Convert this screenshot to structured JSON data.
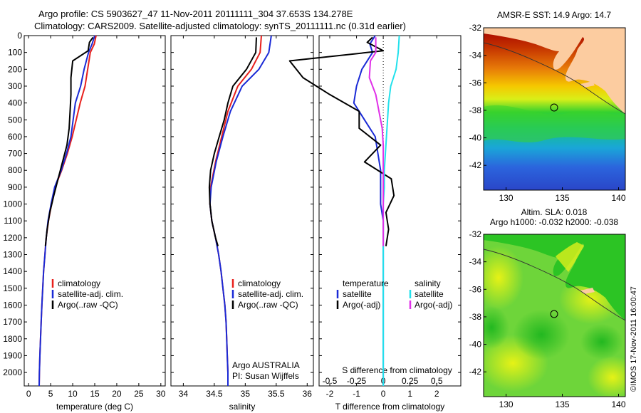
{
  "header": {
    "line1": "Argo profile: CS 5903627_47 11-Nov-2011 20111111_304 37.653S 134.278E",
    "line2": "Climatology: CARS2009. Satellite-adjusted climatology: synTS_20111111.nc (0.31d earlier)"
  },
  "side_label": "©IMOS 17-Nov-2011 16:00:47",
  "colors": {
    "climatology": "#e8201c",
    "satellite": "#1a2ad6",
    "argo": "#000000",
    "sal_satellite": "#22e1ec",
    "sal_argo": "#e030e8",
    "land": "#fccca0"
  },
  "chart_data": [
    {
      "type": "line",
      "id": "temperature",
      "xlabel": "temperature (deg C)",
      "xlim": [
        -1,
        31
      ],
      "xticks": [
        0,
        5,
        10,
        15,
        20,
        25,
        30
      ],
      "ylim": [
        0,
        2080
      ],
      "yticks": [
        0,
        100,
        200,
        300,
        400,
        500,
        600,
        700,
        800,
        900,
        1000,
        1100,
        1200,
        1300,
        1400,
        1500,
        1600,
        1700,
        1800,
        1900,
        2000
      ],
      "legend": [
        "climatology",
        "satellite-adj. clim.",
        "Argo(..raw -QC)"
      ],
      "series": [
        {
          "name": "climatology",
          "color": "#e8201c",
          "points": [
            [
              15.3,
              0
            ],
            [
              14.9,
              50
            ],
            [
              14.0,
              100
            ],
            [
              13.4,
              200
            ],
            [
              12.8,
              300
            ],
            [
              11.7,
              400
            ],
            [
              10.8,
              500
            ],
            [
              9.9,
              600
            ],
            [
              8.8,
              700
            ],
            [
              7.5,
              800
            ],
            [
              6.0,
              900
            ],
            [
              5.2,
              1000
            ],
            [
              4.5,
              1100
            ],
            [
              4.0,
              1200
            ],
            [
              3.7,
              1300
            ],
            [
              3.4,
              1400
            ],
            [
              3.2,
              1500
            ],
            [
              3.0,
              1600
            ],
            [
              2.85,
              1700
            ],
            [
              2.7,
              1800
            ],
            [
              2.55,
              1900
            ],
            [
              2.45,
              2000
            ],
            [
              2.4,
              2080
            ]
          ]
        },
        {
          "name": "satellite-adj. clim.",
          "color": "#1a2ad6",
          "points": [
            [
              15.0,
              0
            ],
            [
              14.4,
              50
            ],
            [
              13.6,
              100
            ],
            [
              12.6,
              200
            ],
            [
              11.8,
              300
            ],
            [
              10.6,
              400
            ],
            [
              10.1,
              500
            ],
            [
              9.6,
              600
            ],
            [
              8.6,
              700
            ],
            [
              7.4,
              800
            ],
            [
              5.9,
              900
            ],
            [
              5.1,
              1000
            ],
            [
              4.4,
              1100
            ],
            [
              4.0,
              1200
            ],
            [
              3.7,
              1300
            ],
            [
              3.4,
              1400
            ],
            [
              3.2,
              1500
            ],
            [
              3.0,
              1600
            ],
            [
              2.85,
              1700
            ],
            [
              2.7,
              1800
            ],
            [
              2.55,
              1900
            ],
            [
              2.45,
              2000
            ],
            [
              2.4,
              2080
            ]
          ]
        },
        {
          "name": "Argo(..raw -QC)",
          "color": "#000000",
          "points": [
            [
              14.6,
              10
            ],
            [
              13.8,
              40
            ],
            [
              13.5,
              90
            ],
            [
              10.0,
              150
            ],
            [
              9.6,
              250
            ],
            [
              9.6,
              350
            ],
            [
              9.4,
              450
            ],
            [
              9.2,
              550
            ],
            [
              8.7,
              650
            ],
            [
              7.7,
              750
            ],
            [
              6.7,
              850
            ],
            [
              5.7,
              950
            ],
            [
              4.8,
              1050
            ],
            [
              4.2,
              1150
            ],
            [
              3.8,
              1250
            ]
          ]
        }
      ]
    },
    {
      "type": "line",
      "id": "salinity",
      "xlabel": "salinity",
      "xlim": [
        33.8,
        36.1
      ],
      "xticks": [
        34,
        34.5,
        35,
        35.5,
        36
      ],
      "ylim": [
        0,
        2080
      ],
      "legend": [
        "climatology",
        "satellite-adj. clim.",
        "Argo(..raw -QC)"
      ],
      "annotation": [
        "Argo AUSTRALIA",
        "PI: Susan Wijffels"
      ],
      "series": [
        {
          "name": "climatology",
          "color": "#e8201c",
          "points": [
            [
              35.26,
              0
            ],
            [
              35.24,
              100
            ],
            [
              35.1,
              200
            ],
            [
              34.88,
              300
            ],
            [
              34.72,
              450
            ],
            [
              34.62,
              600
            ],
            [
              34.52,
              750
            ],
            [
              34.44,
              900
            ],
            [
              34.43,
              1000
            ],
            [
              34.46,
              1100
            ],
            [
              34.52,
              1200
            ],
            [
              34.57,
              1300
            ],
            [
              34.61,
              1400
            ],
            [
              34.64,
              1500
            ],
            [
              34.67,
              1600
            ],
            [
              34.69,
              1700
            ],
            [
              34.7,
              1800
            ],
            [
              34.71,
              1900
            ],
            [
              34.72,
              2000
            ],
            [
              34.72,
              2080
            ]
          ]
        },
        {
          "name": "satellite-adj. clim.",
          "color": "#1a2ad6",
          "points": [
            [
              35.42,
              0
            ],
            [
              35.38,
              100
            ],
            [
              35.22,
              200
            ],
            [
              34.95,
              300
            ],
            [
              34.76,
              450
            ],
            [
              34.64,
              600
            ],
            [
              34.53,
              750
            ],
            [
              34.45,
              900
            ],
            [
              34.43,
              1000
            ],
            [
              34.46,
              1100
            ],
            [
              34.52,
              1200
            ],
            [
              34.57,
              1300
            ],
            [
              34.61,
              1400
            ],
            [
              34.64,
              1500
            ],
            [
              34.67,
              1600
            ],
            [
              34.69,
              1700
            ],
            [
              34.7,
              1800
            ],
            [
              34.71,
              1900
            ],
            [
              34.72,
              2000
            ],
            [
              34.72,
              2080
            ]
          ]
        },
        {
          "name": "Argo(..raw -QC)",
          "color": "#000000",
          "points": [
            [
              35.18,
              10
            ],
            [
              35.17,
              100
            ],
            [
              35.02,
              200
            ],
            [
              34.8,
              300
            ],
            [
              34.72,
              400
            ],
            [
              34.66,
              500
            ],
            [
              34.58,
              600
            ],
            [
              34.5,
              700
            ],
            [
              34.44,
              800
            ],
            [
              34.42,
              900
            ],
            [
              34.43,
              1000
            ],
            [
              34.46,
              1100
            ],
            [
              34.52,
              1200
            ],
            [
              34.56,
              1250
            ]
          ]
        }
      ]
    },
    {
      "type": "line",
      "id": "difference",
      "xlabel": "T difference from climatology",
      "xlabel_top": "S difference from climatology",
      "xlim": [
        -2.4,
        2.9
      ],
      "xticks": [
        -2,
        -1,
        0,
        1,
        2
      ],
      "xticks_top": [
        -0.5,
        -0.25,
        0,
        0.25,
        0.5
      ],
      "ylim": [
        0,
        2080
      ],
      "legend_t": [
        "temperature",
        "satellite",
        "Argo(-adj)"
      ],
      "legend_s": [
        "salinity",
        "satellite",
        "Argo(-adj)"
      ],
      "series": [
        {
          "name": "temperature satellite",
          "color": "#1a2ad6",
          "points": [
            [
              -0.3,
              0
            ],
            [
              -0.5,
              50
            ],
            [
              -0.4,
              100
            ],
            [
              -0.8,
              200
            ],
            [
              -1.0,
              300
            ],
            [
              -1.1,
              400
            ],
            [
              -0.7,
              500
            ],
            [
              -0.3,
              600
            ],
            [
              -0.2,
              700
            ],
            [
              -0.1,
              800
            ],
            [
              -0.1,
              900
            ],
            [
              -0.1,
              1000
            ],
            [
              0,
              1100
            ],
            [
              0,
              1200
            ],
            [
              0,
              1300
            ],
            [
              0,
              1400
            ],
            [
              0,
              1500
            ],
            [
              0,
              1600
            ],
            [
              0,
              1700
            ],
            [
              0,
              1800
            ],
            [
              0,
              1900
            ],
            [
              0,
              2000
            ],
            [
              0,
              2080
            ]
          ]
        },
        {
          "name": "temperature Argo(-adj)",
          "color": "#000000",
          "points": [
            [
              -0.4,
              10
            ],
            [
              -0.6,
              40
            ],
            [
              0.0,
              90
            ],
            [
              -3.5,
              150
            ],
            [
              -3.0,
              250
            ],
            [
              -2.0,
              350
            ],
            [
              -0.9,
              450
            ],
            [
              -0.9,
              550
            ],
            [
              -0.1,
              650
            ],
            [
              -0.7,
              750
            ],
            [
              0.3,
              850
            ],
            [
              0.4,
              950
            ],
            [
              0.1,
              1050
            ],
            [
              0.2,
              1150
            ],
            [
              0.1,
              1250
            ]
          ]
        },
        {
          "name": "salinity satellite",
          "color": "#22e1ec",
          "points": [
            [
              0.15,
              0
            ],
            [
              0.14,
              100
            ],
            [
              0.12,
              200
            ],
            [
              0.07,
              300
            ],
            [
              0.05,
              400
            ],
            [
              0.04,
              500
            ],
            [
              0.03,
              600
            ],
            [
              0.02,
              700
            ],
            [
              0.01,
              800
            ],
            [
              0.01,
              900
            ],
            [
              0,
              1000
            ],
            [
              0,
              1200
            ],
            [
              0,
              1400
            ],
            [
              0,
              1600
            ],
            [
              0,
              1800
            ],
            [
              0,
              2000
            ],
            [
              0,
              2080
            ]
          ]
        },
        {
          "name": "salinity Argo(-adj)",
          "color": "#e030e8",
          "points": [
            [
              -0.07,
              10
            ],
            [
              -0.07,
              100
            ],
            [
              -0.12,
              150
            ],
            [
              -0.13,
              250
            ],
            [
              -0.07,
              350
            ],
            [
              -0.04,
              450
            ],
            [
              -0.01,
              550
            ],
            [
              0.0,
              650
            ],
            [
              0.0,
              800
            ],
            [
              0.0,
              900
            ],
            [
              0.0,
              1000
            ],
            [
              0.0,
              1100
            ],
            [
              0.0,
              1250
            ]
          ]
        }
      ]
    },
    {
      "type": "heatmap",
      "id": "sst-map",
      "title": "AMSR-E SST: 14.9 Argo: 14.7",
      "xlim": [
        128,
        140.6
      ],
      "ylim": [
        -43.8,
        -32
      ],
      "xticks": [
        130,
        135,
        140
      ],
      "yticks": [
        -32,
        -34,
        -36,
        -38,
        -40,
        -42
      ],
      "marker": [
        134.278,
        -37.653
      ]
    },
    {
      "type": "heatmap",
      "id": "sla-map",
      "title_lines": [
        "Altim. SLA: 0.018",
        "Argo h1000: -0.032 h2000: -0.038"
      ],
      "xlim": [
        128,
        140.6
      ],
      "ylim": [
        -43.8,
        -32
      ],
      "xticks": [
        130,
        135,
        140
      ],
      "yticks": [
        -32,
        -34,
        -36,
        -38,
        -40,
        -42
      ],
      "marker": [
        134.278,
        -37.653
      ]
    }
  ]
}
